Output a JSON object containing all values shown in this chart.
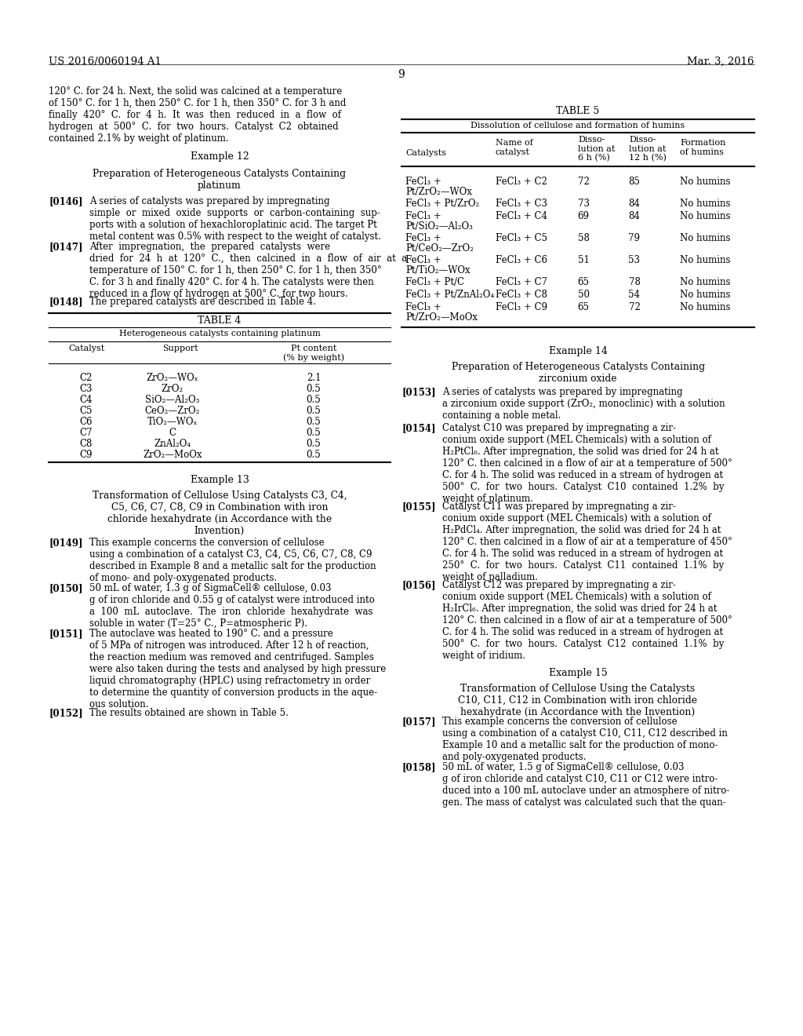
{
  "page_header_left": "US 2016/0060194 A1",
  "page_header_right": "Mar. 3, 2016",
  "page_number": "9",
  "background_color": "#ffffff"
}
